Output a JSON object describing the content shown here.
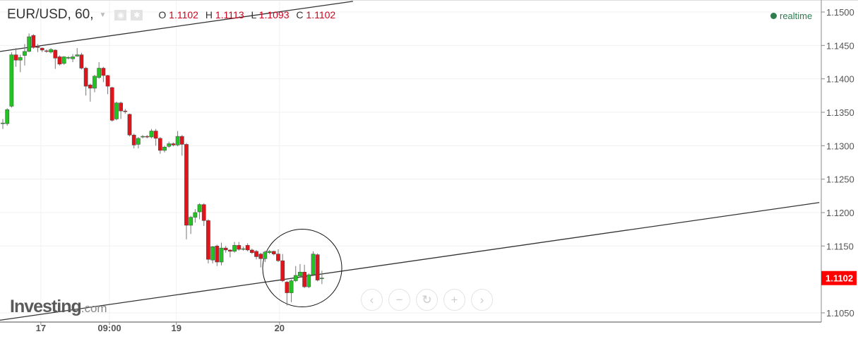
{
  "header": {
    "symbol": "EUR/USD, 60,",
    "open_label": "O",
    "open": "1.1102",
    "high_label": "H",
    "high": "1.1113",
    "low_label": "L",
    "low": "1.1093",
    "close_label": "C",
    "close": "1.1102"
  },
  "status": {
    "label": "realtime",
    "color": "#2e7d4f"
  },
  "logo": {
    "text": "Investing",
    "suffix": ".com"
  },
  "nav_buttons": [
    {
      "name": "scroll-left",
      "glyph": "‹"
    },
    {
      "name": "zoom-out",
      "glyph": "−"
    },
    {
      "name": "reset",
      "glyph": "↻"
    },
    {
      "name": "zoom-in",
      "glyph": "+"
    },
    {
      "name": "scroll-right",
      "glyph": "›"
    }
  ],
  "chart_data": {
    "type": "candlestick",
    "title": "",
    "ylim": [
      1.1037,
      1.1518
    ],
    "y_ticks": [
      "1.1500",
      "1.1450",
      "1.1400",
      "1.1350",
      "1.1300",
      "1.1250",
      "1.1200",
      "1.1150",
      "1.1050"
    ],
    "x_ticks": [
      {
        "label": "17",
        "index": 8.7
      },
      {
        "label": "09:00",
        "index": 24.4
      },
      {
        "label": "19",
        "index": 39.7
      },
      {
        "label": "20",
        "index": 63.3
      }
    ],
    "grid": true,
    "current_price": {
      "value": "1.1102",
      "color": "#ff0000"
    },
    "colors": {
      "up": "#22c322",
      "down": "#e0141b"
    },
    "ohlc": [
      [
        1.1333,
        1.134,
        1.1325,
        1.1334
      ],
      [
        1.1333,
        1.1356,
        1.133,
        1.1354
      ],
      [
        1.1359,
        1.144,
        1.1357,
        1.1436
      ],
      [
        1.1436,
        1.1446,
        1.1418,
        1.1428
      ],
      [
        1.1428,
        1.1436,
        1.141,
        1.1432
      ],
      [
        1.1435,
        1.1452,
        1.142,
        1.1441
      ],
      [
        1.1441,
        1.1468,
        1.144,
        1.1463
      ],
      [
        1.1465,
        1.1467,
        1.1445,
        1.1447
      ],
      [
        1.1448,
        1.1452,
        1.144,
        1.1447
      ],
      [
        1.1446,
        1.1447,
        1.144,
        1.1443
      ],
      [
        1.1442,
        1.1444,
        1.1439,
        1.1441
      ],
      [
        1.144,
        1.1446,
        1.1438,
        1.1444
      ],
      [
        1.1443,
        1.1444,
        1.1415,
        1.1431
      ],
      [
        1.1433,
        1.1435,
        1.142,
        1.1422
      ],
      [
        1.1423,
        1.1434,
        1.1421,
        1.1433
      ],
      [
        1.1431,
        1.1434,
        1.1429,
        1.1432
      ],
      [
        1.143,
        1.1437,
        1.1425,
        1.1433
      ],
      [
        1.1434,
        1.1446,
        1.1433,
        1.1436
      ],
      [
        1.1436,
        1.1439,
        1.1414,
        1.1416
      ],
      [
        1.1416,
        1.1418,
        1.1375,
        1.1389
      ],
      [
        1.1391,
        1.1393,
        1.1366,
        1.1386
      ],
      [
        1.1386,
        1.1406,
        1.138,
        1.1404
      ],
      [
        1.1402,
        1.1425,
        1.14,
        1.1416
      ],
      [
        1.1416,
        1.1418,
        1.1395,
        1.1405
      ],
      [
        1.1405,
        1.1406,
        1.1377,
        1.1389
      ],
      [
        1.1387,
        1.1388,
        1.1336,
        1.1338
      ],
      [
        1.134,
        1.1366,
        1.1338,
        1.1364
      ],
      [
        1.1364,
        1.1366,
        1.134,
        1.1352
      ],
      [
        1.1352,
        1.1355,
        1.1348,
        1.1351
      ],
      [
        1.1347,
        1.1348,
        1.1314,
        1.1316
      ],
      [
        1.1316,
        1.1318,
        1.1296,
        1.1301
      ],
      [
        1.1302,
        1.1313,
        1.1296,
        1.1311
      ],
      [
        1.1313,
        1.1316,
        1.1311,
        1.1314
      ],
      [
        1.1314,
        1.1316,
        1.1311,
        1.1313
      ],
      [
        1.1313,
        1.1325,
        1.1311,
        1.1322
      ],
      [
        1.1322,
        1.1325,
        1.13,
        1.1311
      ],
      [
        1.1311,
        1.1313,
        1.1288,
        1.1293
      ],
      [
        1.1293,
        1.13,
        1.129,
        1.1298
      ],
      [
        1.1299,
        1.1306,
        1.1297,
        1.1303
      ],
      [
        1.1303,
        1.1305,
        1.1299,
        1.1301
      ],
      [
        1.1301,
        1.1322,
        1.1299,
        1.1314
      ],
      [
        1.1314,
        1.1316,
        1.1285,
        1.1302
      ],
      [
        1.1302,
        1.1304,
        1.116,
        1.1181
      ],
      [
        1.1181,
        1.1195,
        1.1168,
        1.1193
      ],
      [
        1.1193,
        1.1205,
        1.1185,
        1.12
      ],
      [
        1.1201,
        1.1214,
        1.119,
        1.1212
      ],
      [
        1.1212,
        1.1214,
        1.118,
        1.1188
      ],
      [
        1.1188,
        1.119,
        1.1124,
        1.113
      ],
      [
        1.1129,
        1.115,
        1.1124,
        1.1149
      ],
      [
        1.115,
        1.1152,
        1.112,
        1.1126
      ],
      [
        1.1126,
        1.1155,
        1.1121,
        1.1147
      ],
      [
        1.1147,
        1.115,
        1.114,
        1.1144
      ],
      [
        1.1144,
        1.1145,
        1.1133,
        1.1142
      ],
      [
        1.1142,
        1.1156,
        1.114,
        1.1151
      ],
      [
        1.1151,
        1.1156,
        1.1143,
        1.1145
      ],
      [
        1.1145,
        1.1149,
        1.1143,
        1.1146
      ],
      [
        1.1151,
        1.1154,
        1.1142,
        1.1144
      ],
      [
        1.1144,
        1.1146,
        1.1138,
        1.114
      ],
      [
        1.1142,
        1.1144,
        1.113,
        1.1134
      ],
      [
        1.1138,
        1.114,
        1.1118,
        1.1131
      ],
      [
        1.1131,
        1.1143,
        1.1126,
        1.1141
      ],
      [
        1.114,
        1.1144,
        1.1138,
        1.1142
      ],
      [
        1.1142,
        1.1143,
        1.1136,
        1.1138
      ],
      [
        1.1138,
        1.1145,
        1.1126,
        1.1128
      ],
      [
        1.1128,
        1.1138,
        1.1096,
        1.1098
      ],
      [
        1.1096,
        1.1098,
        1.1061,
        1.108
      ],
      [
        1.108,
        1.11,
        1.1066,
        1.1098
      ],
      [
        1.1098,
        1.112,
        1.1096,
        1.1106
      ],
      [
        1.1105,
        1.1123,
        1.1103,
        1.1111
      ],
      [
        1.1111,
        1.1122,
        1.1087,
        1.1089
      ],
      [
        1.1089,
        1.1109,
        1.1087,
        1.1107
      ],
      [
        1.1107,
        1.1142,
        1.1105,
        1.1138
      ],
      [
        1.1137,
        1.1139,
        1.1097,
        1.1099
      ],
      [
        1.1102,
        1.1113,
        1.1093,
        1.1102
      ]
    ],
    "trendlines": [
      {
        "from": {
          "index": -0.65,
          "price": 1.1441
        },
        "to": {
          "index": 80.1,
          "price": 1.1516
        }
      },
      {
        "from": {
          "index": -0.65,
          "price": 1.1039
        },
        "to": {
          "index": 186.8,
          "price": 1.1215
        }
      }
    ],
    "circle_annotation": {
      "center": {
        "index": 68.5,
        "price": 1.1117
      }
    }
  }
}
